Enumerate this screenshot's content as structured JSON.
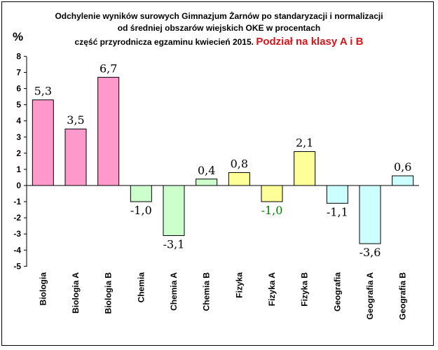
{
  "title": {
    "line1": "Odchylenie wyników surowych Gimnazjum Żarnów po standaryzacji i normalizacji",
    "line2": "od średniej obszarów wiejskich OKE w procentach",
    "line3": "część przyrodnicza egzaminu kwiecień 2015.",
    "line3_highlight": "Podział na klasy A i B"
  },
  "chart_data": {
    "type": "bar",
    "ylabel": "%",
    "ylim": [
      -5,
      8
    ],
    "yticks": [
      8,
      7,
      6,
      5,
      4,
      3,
      2,
      1,
      0,
      -1,
      -2,
      -3,
      -4,
      -5
    ],
    "categories": [
      "Biologia",
      "Biologia A",
      "Biologia B",
      "Chemia",
      "Chemia A",
      "Chemia B",
      "Fizyka",
      "Fizyka A",
      "Fizyka B",
      "Geografia",
      "Geografia A",
      "Geografia B"
    ],
    "values": [
      5.3,
      3.5,
      6.7,
      -1.0,
      -3.1,
      0.4,
      0.8,
      -1.0,
      2.1,
      -1.1,
      -3.6,
      0.6
    ],
    "labels": [
      "5,3",
      "3,5",
      "6,7",
      "-1,0",
      "-3,1",
      "0,4",
      "0,8",
      "-1,0",
      "2,1",
      "-1,1",
      "-3,6",
      "0,6"
    ],
    "bar_colors": [
      "#ff99cc",
      "#ff99cc",
      "#ff99cc",
      "#ccffcc",
      "#ccffcc",
      "#ccffcc",
      "#ffff99",
      "#ffff99",
      "#ffff99",
      "#ccffff",
      "#ccffff",
      "#ccffff"
    ],
    "label_colors": [
      "#000000",
      "#000000",
      "#000000",
      "#000000",
      "#000000",
      "#000000",
      "#000000",
      "#008000",
      "#000000",
      "#000000",
      "#000000",
      "#000000"
    ]
  }
}
